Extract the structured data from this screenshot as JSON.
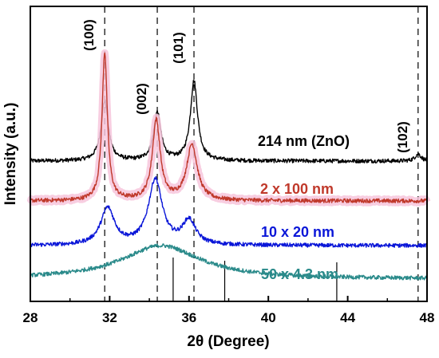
{
  "chart_data": {
    "type": "line",
    "title": "",
    "xlabel": "2θ (Degree)",
    "ylabel": "Intensity (a.u.)",
    "xlim": [
      28,
      48
    ],
    "xticks": [
      28,
      32,
      36,
      40,
      44,
      48
    ],
    "tick_labels": [
      "28",
      "32",
      "36",
      "40",
      "44",
      "48"
    ],
    "y_ticks_shown": false,
    "grid": false,
    "legend": "inline labels",
    "reference_peaks": [
      {
        "label": "(100)",
        "x": 31.75
      },
      {
        "label": "(002)",
        "x": 34.4
      },
      {
        "label": "(101)",
        "x": 36.25
      },
      {
        "label": "(102)",
        "x": 47.55
      }
    ],
    "reference_sticks": [
      35.2,
      37.8,
      43.45
    ],
    "series": [
      {
        "name": "214 nm (ZnO)",
        "color": "#000000",
        "baseline": 1.56,
        "peaks": [
          [
            31.75,
            0.75,
            0.22
          ],
          [
            34.4,
            0.6,
            0.22
          ],
          [
            36.25,
            1.0,
            0.22
          ],
          [
            47.55,
            0.09,
            0.18
          ]
        ]
      },
      {
        "name": "2 x 100 nm",
        "color": "#c0392b",
        "shade": "#f7c6dc",
        "baseline": 1.06,
        "peaks": [
          [
            31.75,
            1.86,
            0.16
          ],
          [
            34.35,
            1.0,
            0.24
          ],
          [
            36.15,
            0.7,
            0.32
          ]
        ]
      },
      {
        "name": "10 x 20 nm",
        "color": "#0a16d8",
        "baseline": 0.5,
        "peaks": [
          [
            31.9,
            0.46,
            0.42
          ],
          [
            34.3,
            0.82,
            0.42
          ],
          [
            36.0,
            0.3,
            0.4
          ]
        ]
      },
      {
        "name": "50 x 4.3 nm",
        "color": "#2a8a8a",
        "baseline": 0.08,
        "peaks": [
          [
            34.6,
            0.42,
            2.4
          ]
        ]
      }
    ]
  }
}
